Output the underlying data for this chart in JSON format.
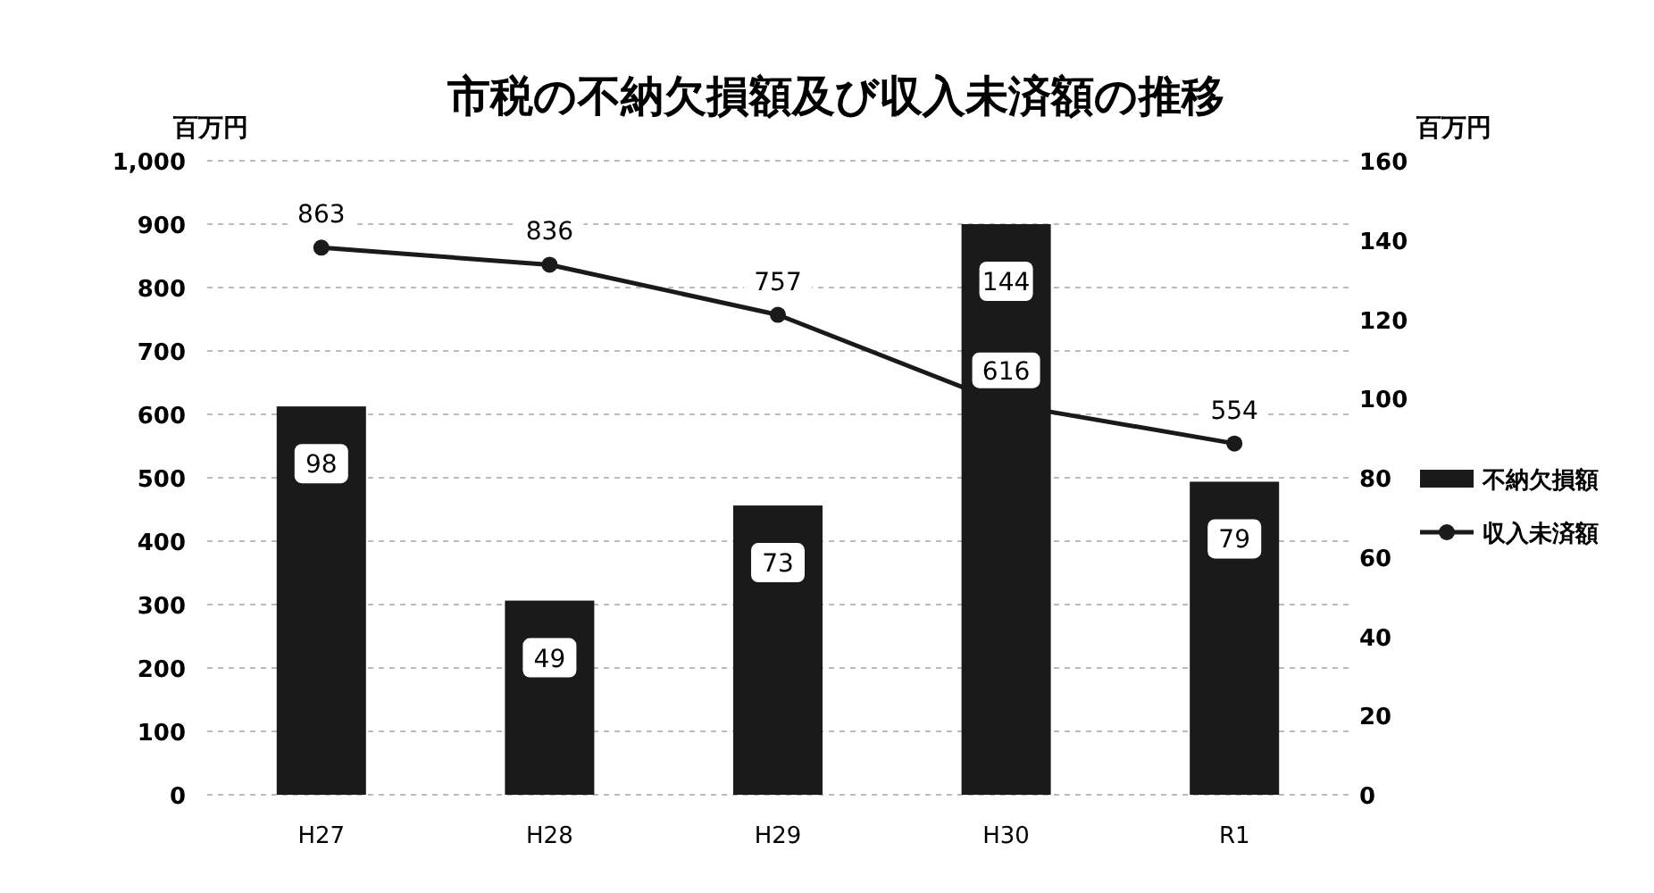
{
  "chart_data": {
    "type": "bar",
    "title": "市税の不納欠損額及び収入未済額の推移",
    "ylabel": "百万円",
    "y2label": "百万円",
    "categories": [
      "H27",
      "H28",
      "H29",
      "H30",
      "R1"
    ],
    "series": [
      {
        "name": "不納欠損額",
        "axis": "y2",
        "color": "#1a1a1a",
        "values": [
          98,
          49,
          73,
          144,
          79
        ]
      },
      {
        "name": "収入未済額",
        "type": "line",
        "axis": "y",
        "color": "#1a1a1a",
        "marker": "circle",
        "line_style": "solid",
        "values": [
          863,
          836,
          757,
          616,
          554
        ]
      }
    ],
    "ylim": [
      0,
      1000
    ],
    "yticks": [
      0,
      {
        "value": 100,
        "label": "100"
      },
      200,
      300,
      400,
      500,
      600,
      700,
      800,
      900,
      {
        "value": 1000,
        "label": "1,000"
      }
    ],
    "y2lim": [
      0,
      160
    ],
    "y2ticks": [
      0,
      20,
      40,
      60,
      80,
      100,
      120,
      140,
      160
    ],
    "grid": "y",
    "legend": "right",
    "data_labels": true
  }
}
